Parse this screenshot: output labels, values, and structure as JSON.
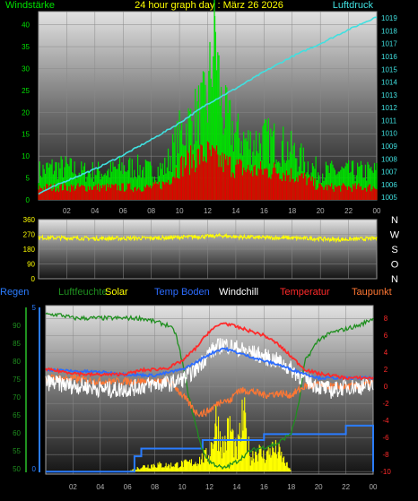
{
  "title": "24 hour graph day : März 26 2026",
  "colors": {
    "wind_avg": "#e00000",
    "wind_gust": "#00e000",
    "pressure": "#40e0e0",
    "winddir": "#ffff00",
    "humidity": "#1f8f1f",
    "solar": "#ffff00",
    "soil": "#2c6cff",
    "windchill": "#ffffff",
    "temperature": "#ff2a2a",
    "dewpoint": "#ff7733",
    "rain": "#2a7cff"
  },
  "chart_data": [
    {
      "type": "line",
      "left_axis_label": "Windstärke",
      "right_axis_label": "Luftdruck",
      "x_ticks": [
        "02",
        "04",
        "06",
        "08",
        "10",
        "12",
        "14",
        "16",
        "18",
        "20",
        "22",
        "00"
      ],
      "left_ticks": [
        "0",
        "5",
        "10",
        "15",
        "20",
        "25",
        "30",
        "35",
        "40"
      ],
      "right_ticks": [
        "1005",
        "1006",
        "1007",
        "1008",
        "1009",
        "1010",
        "1011",
        "1012",
        "1013",
        "1014",
        "1015",
        "1016",
        "1017",
        "1018",
        "1019"
      ],
      "ylim_left": [
        0,
        43
      ],
      "ylim_right": [
        1004.8,
        1019.5
      ],
      "series": [
        {
          "key": "wind_gust",
          "x": [
            0,
            1,
            2,
            3,
            4,
            5,
            6,
            7,
            8,
            9,
            10,
            11,
            12,
            12.5,
            13,
            14,
            15,
            16,
            17,
            18,
            19,
            20,
            21,
            22,
            23,
            24
          ],
          "values": [
            7,
            8,
            8,
            7,
            7,
            7,
            8,
            8,
            7,
            8,
            16,
            20,
            24,
            42,
            22,
            16,
            14,
            15,
            14,
            12,
            9,
            7,
            7,
            7,
            7,
            7
          ]
        },
        {
          "key": "wind_avg",
          "x": [
            0,
            1,
            2,
            3,
            4,
            5,
            6,
            7,
            8,
            9,
            10,
            11,
            12,
            13,
            14,
            15,
            16,
            17,
            18,
            19,
            20,
            21,
            22,
            23,
            24
          ],
          "values": [
            3,
            3,
            3,
            3,
            3,
            3,
            3,
            3,
            3,
            4,
            8,
            10,
            11,
            9,
            8,
            7,
            7,
            7,
            6,
            5,
            3,
            3,
            3,
            3,
            3
          ]
        },
        {
          "key": "pressure",
          "x": [
            0,
            2,
            4,
            6,
            8,
            10,
            12,
            14,
            16,
            18,
            20,
            22,
            24
          ],
          "values": [
            1005.3,
            1006.3,
            1007.2,
            1008.3,
            1009.5,
            1010.8,
            1012.3,
            1013.5,
            1014.8,
            1016.0,
            1017.0,
            1018.1,
            1019.1
          ]
        }
      ]
    },
    {
      "type": "line",
      "left_ticks": [
        "0",
        "90",
        "180",
        "270",
        "360"
      ],
      "right_labels": [
        "N",
        "W",
        "S",
        "O",
        "N"
      ],
      "ylim": [
        0,
        360
      ],
      "series": [
        {
          "key": "winddir",
          "x": [
            0,
            2,
            4,
            6,
            8,
            10,
            12,
            13,
            14,
            16,
            18,
            20,
            21,
            22,
            24
          ],
          "values": [
            250,
            248,
            245,
            246,
            247,
            252,
            258,
            262,
            255,
            250,
            248,
            243,
            238,
            240,
            245
          ]
        }
      ]
    },
    {
      "type": "line",
      "legend": [
        "Regen",
        "Luftfeuchte",
        "Solar",
        "Temp Boden",
        "Windchill",
        "Temperatur",
        "Taupunkt"
      ],
      "x_ticks": [
        "02",
        "04",
        "06",
        "08",
        "10",
        "12",
        "14",
        "16",
        "18",
        "20",
        "22",
        "00"
      ],
      "left_ticks": [
        "50",
        "55",
        "60",
        "65",
        "70",
        "75",
        "80",
        "85",
        "90"
      ],
      "right_ticks": [
        "-10",
        "-8",
        "-6",
        "-4",
        "-2",
        "0",
        "2",
        "4",
        "6",
        "8"
      ],
      "rain_axis_ticks": [
        "0",
        "5"
      ],
      "ylim_left": [
        48.5,
        95.5
      ],
      "ylim_right": [
        -10.3,
        9.5
      ],
      "series": [
        {
          "key": "humidity",
          "x": [
            0,
            1,
            2,
            3,
            4,
            5,
            6,
            7,
            8,
            9,
            9.5,
            10,
            10.5,
            11,
            11.5,
            12,
            13,
            14,
            15,
            16,
            17,
            18,
            18.5,
            19,
            20,
            21,
            22,
            23,
            24
          ],
          "values": [
            93,
            93,
            92,
            92,
            92,
            92,
            92,
            92,
            91,
            90,
            88,
            80,
            70,
            62,
            55,
            52,
            50,
            52,
            55,
            56,
            57,
            60,
            67,
            80,
            86,
            88,
            89,
            90,
            92
          ]
        },
        {
          "key": "temperature",
          "x": [
            0,
            1,
            2,
            3,
            4,
            5,
            6,
            7,
            8,
            9,
            10,
            11,
            12,
            13,
            14,
            15,
            16,
            17,
            18,
            19,
            20,
            21,
            22,
            23,
            24
          ],
          "values": [
            2.0,
            1.8,
            1.6,
            1.4,
            1.4,
            1.4,
            1.5,
            1.9,
            2.0,
            2.2,
            3.0,
            4.5,
            6.5,
            7.5,
            7.0,
            6.5,
            6.0,
            5.0,
            3.5,
            2.0,
            1.5,
            1.3,
            1.0,
            1.0,
            1.0
          ]
        },
        {
          "key": "soil",
          "x": [
            0,
            2,
            4,
            6,
            8,
            10,
            11,
            12,
            13,
            14,
            15,
            16,
            17,
            18,
            19,
            20,
            22,
            24
          ],
          "values": [
            2.0,
            1.8,
            1.7,
            1.4,
            1.3,
            2.0,
            2.8,
            3.8,
            4.5,
            4.0,
            3.5,
            3.0,
            2.6,
            2.0,
            1.5,
            1.0,
            1.0,
            1.0
          ]
        },
        {
          "key": "windchill",
          "x": [
            0,
            1,
            2,
            3,
            4,
            5,
            6,
            7,
            8,
            9,
            10,
            11,
            12,
            13,
            14,
            15,
            16,
            17,
            18,
            19,
            20,
            21,
            22,
            23,
            24
          ],
          "values": [
            0.5,
            0.3,
            0.1,
            0.0,
            -0.3,
            -0.4,
            -0.3,
            0.0,
            0.3,
            0.3,
            0.8,
            2.0,
            4.0,
            5.0,
            4.5,
            4.0,
            3.5,
            3.0,
            2.0,
            0.8,
            0.0,
            -0.5,
            0.0,
            0.0,
            0.0
          ]
        },
        {
          "key": "dewpoint",
          "x": [
            0,
            2,
            4,
            6,
            8,
            9,
            9.5,
            10,
            10.5,
            11,
            11.5,
            12,
            13,
            13.5,
            14,
            15,
            16,
            17,
            18,
            19,
            20,
            21,
            22,
            23,
            24
          ],
          "values": [
            1.0,
            0.9,
            0.6,
            0.6,
            0.6,
            0.5,
            0.0,
            -1.0,
            -2.0,
            -3.0,
            -3.2,
            -2.8,
            -1.5,
            -1.8,
            -0.5,
            -0.5,
            -1.0,
            -0.8,
            -1.0,
            0.0,
            0.2,
            0.0,
            0.0,
            0.0,
            0.5
          ]
        },
        {
          "key": "rain",
          "x": [
            0,
            6.5,
            6.5,
            7,
            7,
            11.5,
            11.5,
            16,
            16,
            22,
            22,
            24,
            24
          ],
          "values": [
            -10,
            -10,
            -8.2,
            -8.2,
            -7.3,
            -7.3,
            -6.3,
            -6.3,
            -5.6,
            -5.6,
            -4.6,
            -4.6,
            -10
          ]
        },
        {
          "key": "solar",
          "x": [
            0,
            6,
            7,
            8,
            9,
            10,
            11,
            12,
            12.5,
            13,
            13.5,
            14,
            14.5,
            15,
            15.5,
            16,
            16.5,
            17,
            17.5,
            18,
            24
          ],
          "values": [
            -10,
            -10,
            -9.3,
            -9.0,
            -9.1,
            -8.9,
            -8.6,
            -7.5,
            -2.5,
            -6.5,
            -3.5,
            -7.5,
            -2.0,
            -8.0,
            -6.8,
            -7.8,
            -6.8,
            -7.0,
            -8.5,
            -10,
            -10
          ]
        }
      ]
    }
  ]
}
